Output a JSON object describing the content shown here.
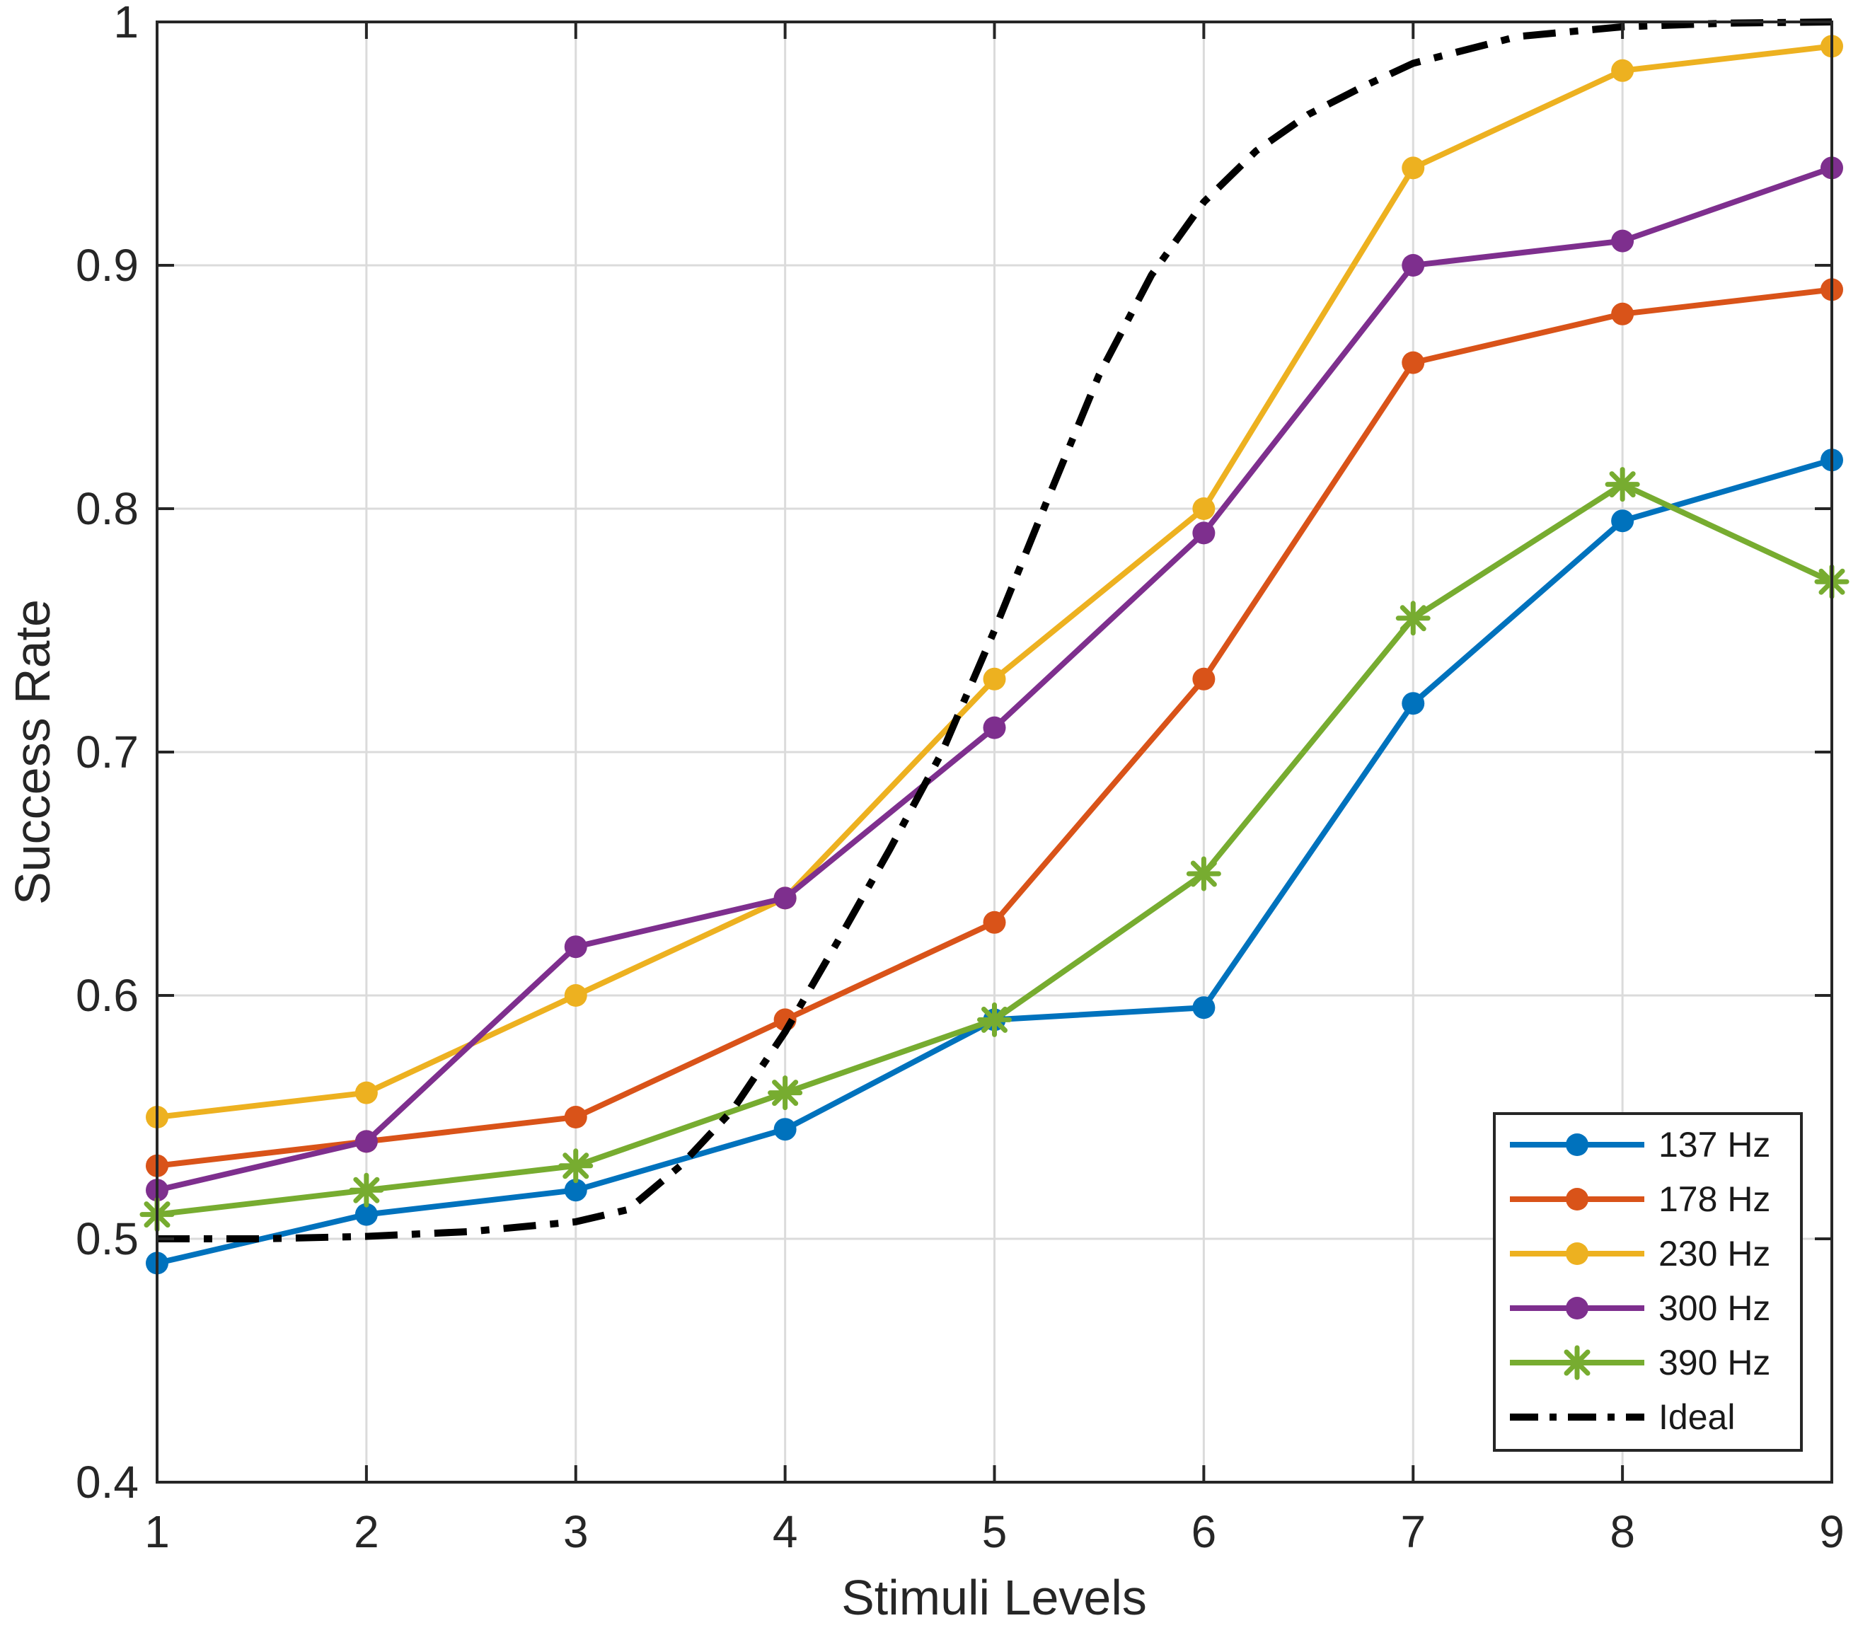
{
  "chart_data": {
    "type": "line",
    "title": "",
    "xlabel": "Stimuli Levels",
    "ylabel": "Success Rate",
    "xlim": [
      1,
      9
    ],
    "ylim": [
      0.4,
      1.0
    ],
    "xticks": [
      1,
      2,
      3,
      4,
      5,
      6,
      7,
      8,
      9
    ],
    "yticks": [
      0.4,
      0.5,
      0.6,
      0.7,
      0.8,
      0.9,
      1.0
    ],
    "ytick_labels": [
      "0.4",
      "0.5",
      "0.6",
      "0.7",
      "0.8",
      "0.9",
      "1"
    ],
    "grid": true,
    "legend_position": "bottom-right",
    "categories": [
      1,
      2,
      3,
      4,
      5,
      6,
      7,
      8,
      9
    ],
    "series": [
      {
        "name": "137 Hz",
        "color": "#0072BD",
        "marker": "circle",
        "values": [
          0.49,
          0.51,
          0.52,
          0.545,
          0.59,
          0.595,
          0.72,
          0.795,
          0.82
        ]
      },
      {
        "name": "178 Hz",
        "color": "#D95319",
        "marker": "circle",
        "values": [
          0.53,
          0.54,
          0.55,
          0.59,
          0.63,
          0.73,
          0.86,
          0.88,
          0.89
        ]
      },
      {
        "name": "230 Hz",
        "color": "#EDB120",
        "marker": "circle",
        "values": [
          0.55,
          0.56,
          0.6,
          0.64,
          0.73,
          0.8,
          0.94,
          0.98,
          0.99
        ]
      },
      {
        "name": "300 Hz",
        "color": "#7E2F8E",
        "marker": "circle",
        "values": [
          0.52,
          0.54,
          0.62,
          0.64,
          0.71,
          0.79,
          0.9,
          0.91,
          0.94
        ]
      },
      {
        "name": "390 Hz",
        "color": "#77AC30",
        "marker": "asterisk",
        "values": [
          0.51,
          0.52,
          0.53,
          0.56,
          0.59,
          0.65,
          0.755,
          0.81,
          0.77
        ]
      }
    ],
    "ideal_curve": {
      "name": "Ideal",
      "color": "#000000",
      "line_style": "dash-dot",
      "x": [
        1,
        1.5,
        2,
        2.5,
        3,
        3.25,
        3.5,
        3.75,
        4,
        4.25,
        4.5,
        4.75,
        5,
        5.25,
        5.5,
        5.75,
        6,
        6.25,
        6.5,
        6.75,
        7,
        7.5,
        8,
        8.5,
        9
      ],
      "y": [
        0.5,
        0.5,
        0.501,
        0.503,
        0.507,
        0.512,
        0.53,
        0.553,
        0.585,
        0.622,
        0.66,
        0.7,
        0.75,
        0.803,
        0.855,
        0.896,
        0.926,
        0.947,
        0.962,
        0.973,
        0.983,
        0.994,
        0.998,
        0.9995,
        1.0
      ]
    },
    "legend_entries": [
      "137 Hz",
      "178 Hz",
      "230 Hz",
      "300 Hz",
      "390 Hz",
      "Ideal"
    ],
    "style_colors": {
      "grid": "#DBDBDB",
      "axis": "#262626",
      "background": "#FFFFFF"
    }
  }
}
